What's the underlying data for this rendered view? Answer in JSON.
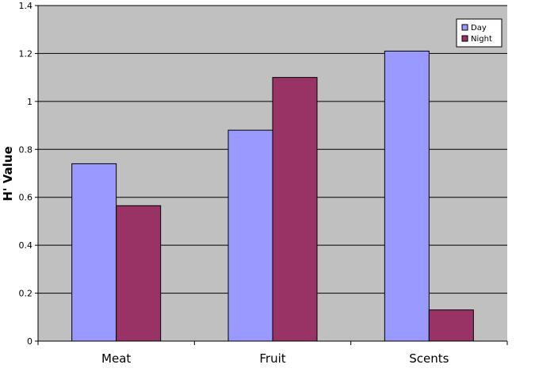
{
  "chart_data": {
    "type": "bar",
    "title": "",
    "xlabel": "",
    "ylabel": "H' Value",
    "categories": [
      "Meat",
      "Fruit",
      "Scents"
    ],
    "series": [
      {
        "name": "Day",
        "values": [
          0.74,
          0.88,
          1.21
        ],
        "color": "#9999ff"
      },
      {
        "name": "Night",
        "values": [
          0.565,
          1.1,
          0.13
        ],
        "color": "#993366"
      }
    ],
    "ylim": [
      0,
      1.4
    ],
    "yticks": [
      "0",
      "0.2",
      "0.4",
      "0.6",
      "0.8",
      "1",
      "1.2",
      "1.4"
    ],
    "grid": true,
    "plot_background": "#c0c0c0",
    "legend_position": "top-right"
  }
}
